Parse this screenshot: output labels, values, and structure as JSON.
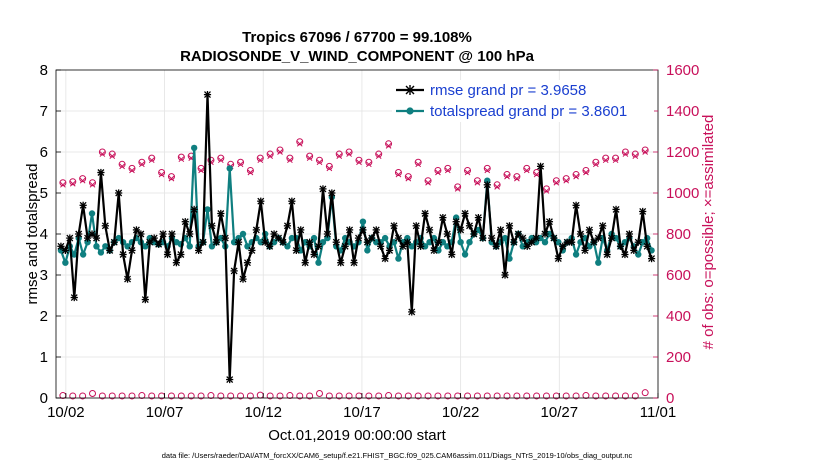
{
  "colors": {
    "rmse": "#000000",
    "spread": "#0f7f80",
    "obs": "#c8105a",
    "legend_text": "#1a3fd0"
  },
  "chart_data": {
    "type": "line",
    "title": "Tropics 67096 / 67700 = 99.108%",
    "subtitle": "RADIOSONDE_V_WIND_COMPONENT @ 100 hPa",
    "xlabel": "Oct.01,2019 00:00:00 start",
    "ylabel": "rmse and totalspread",
    "ylabel_right": "# of obs: o=possible; ×=assimilated",
    "xlim": [
      0.5,
      31.0
    ],
    "ylim": [
      0,
      8
    ],
    "ylim_right": [
      0,
      1600
    ],
    "x_ticks": [
      1,
      6,
      11,
      16,
      21,
      26,
      31
    ],
    "x_tick_labels": [
      "10/02",
      "10/07",
      "10/12",
      "10/17",
      "10/22",
      "10/27",
      "11/01"
    ],
    "y_ticks": [
      0,
      1,
      2,
      3,
      4,
      5,
      6,
      7,
      8
    ],
    "y_ticks_right": [
      0,
      200,
      400,
      600,
      800,
      1000,
      1200,
      1400,
      1600
    ],
    "grid": true,
    "legend_position": "top-right",
    "x_step": 0.25,
    "series": [
      {
        "name": "rmse grand pr = 3.9658",
        "axis": "left",
        "values": [
          3.7,
          3.6,
          3.9,
          2.45,
          4.0,
          4.7,
          3.9,
          4.0,
          3.9,
          5.5,
          4.2,
          3.6,
          3.8,
          5.0,
          3.5,
          2.9,
          3.6,
          4.1,
          4.0,
          2.4,
          3.8,
          3.9,
          3.75,
          4.0,
          3.5,
          4.0,
          3.3,
          3.5,
          4.3,
          4.0,
          4.6,
          3.6,
          3.8,
          7.4,
          4.2,
          3.8,
          4.5,
          3.9,
          0.45,
          3.1,
          3.8,
          2.9,
          3.3,
          3.6,
          4.1,
          4.8,
          3.8,
          3.7,
          4.0,
          3.9,
          3.8,
          4.2,
          4.8,
          3.6,
          4.1,
          3.3,
          3.8,
          3.5,
          3.7,
          5.1,
          4.0,
          5.0,
          3.8,
          3.3,
          3.7,
          4.1,
          3.3,
          3.9,
          4.1,
          3.8,
          3.9,
          4.1,
          3.7,
          3.4,
          3.6,
          4.2,
          3.9,
          3.7,
          3.8,
          2.1,
          4.2,
          3.7,
          4.5,
          4.1,
          3.6,
          3.8,
          4.4,
          4.0,
          3.5,
          4.3,
          4.1,
          4.5,
          4.2,
          4.0,
          4.4,
          3.9,
          5.2,
          3.9,
          3.7,
          4.1,
          3.0,
          4.2,
          3.8,
          4.0,
          3.9,
          3.7,
          3.8,
          3.9,
          5.65,
          4.0,
          4.3,
          3.9,
          3.4,
          3.7,
          3.8,
          3.8,
          4.7,
          4.0,
          3.6,
          4.1,
          3.8,
          3.9,
          4.2,
          3.5,
          3.9,
          4.6,
          3.7,
          3.5,
          4.0,
          3.6,
          3.8,
          4.55,
          3.7,
          3.4
        ]
      },
      {
        "name": "totalspread grand pr = 3.8601",
        "axis": "left",
        "values": [
          3.6,
          3.3,
          3.7,
          3.5,
          3.9,
          3.5,
          3.8,
          4.5,
          3.7,
          3.55,
          3.7,
          3.6,
          3.8,
          3.9,
          3.8,
          3.7,
          3.8,
          3.9,
          3.8,
          3.7,
          3.9,
          3.8,
          3.75,
          3.8,
          3.7,
          3.9,
          3.8,
          3.75,
          3.9,
          3.7,
          6.1,
          3.7,
          3.8,
          4.6,
          3.7,
          3.8,
          3.9,
          3.7,
          5.6,
          3.8,
          3.9,
          4.0,
          3.7,
          3.8,
          3.9,
          3.8,
          4.0,
          3.7,
          3.8,
          3.9,
          3.8,
          3.7,
          3.9,
          3.9,
          3.6,
          3.8,
          3.7,
          3.9,
          3.3,
          3.8,
          3.9,
          4.9,
          3.7,
          3.6,
          3.9,
          3.8,
          3.7,
          3.8,
          4.3,
          3.6,
          3.9,
          3.8,
          3.8,
          3.9,
          3.7,
          3.8,
          3.4,
          3.8,
          3.9,
          3.7,
          3.8,
          3.9,
          3.7,
          3.8,
          3.9,
          3.6,
          3.8,
          3.7,
          3.8,
          4.4,
          3.8,
          3.5,
          3.8,
          4.0,
          4.1,
          3.9,
          5.3,
          3.8,
          3.7,
          3.8,
          3.9,
          3.4,
          3.8,
          4.0,
          3.7,
          3.8,
          3.9,
          3.8,
          3.9,
          3.8,
          4.0,
          3.9,
          3.8,
          3.6,
          3.8,
          3.9,
          3.5,
          3.8,
          3.9,
          3.7,
          3.8,
          3.3,
          3.9,
          3.6,
          4.0,
          3.9,
          3.7,
          3.8,
          3.9,
          3.7,
          3.5,
          3.8,
          3.9,
          3.6
        ]
      },
      {
        "name": "obs possible (o)",
        "axis": "right",
        "step": 1.0,
        "values": [
          1050,
          1055,
          1070,
          1050,
          1200,
          1190,
          1140,
          1120,
          1150,
          1170,
          1100,
          1080,
          1175,
          1180,
          1120,
          1160,
          1170,
          1140,
          1150,
          1110,
          1170,
          1190,
          1210,
          1170,
          1250,
          1180,
          1160,
          1130,
          1190,
          1200,
          1160,
          1150,
          1190,
          1240,
          1100,
          1080,
          1150,
          1060,
          1110,
          1120,
          1030,
          1110,
          1060,
          1120,
          1040,
          1090,
          1080,
          1120,
          1100,
          1020,
          1060,
          1070,
          1090,
          1110,
          1150,
          1170,
          1170,
          1200,
          1190,
          1210
        ]
      },
      {
        "name": "obs assimilated (×)",
        "axis": "right",
        "step": 1.0,
        "values": [
          1040,
          1045,
          1060,
          1040,
          1190,
          1180,
          1130,
          1110,
          1140,
          1160,
          1090,
          1070,
          1165,
          1170,
          1110,
          1150,
          1160,
          1130,
          1140,
          1100,
          1160,
          1180,
          1200,
          1160,
          1240,
          1170,
          1150,
          1120,
          1180,
          1190,
          1150,
          1140,
          1180,
          1230,
          1090,
          1070,
          1140,
          1050,
          1100,
          1110,
          1020,
          1100,
          1050,
          1110,
          1030,
          1080,
          1070,
          1110,
          1090,
          1010,
          1050,
          1060,
          1080,
          1100,
          1140,
          1160,
          1160,
          1190,
          1180,
          1200
        ]
      },
      {
        "name": "obs possible bottom (o)",
        "axis": "right",
        "step": 1.0,
        "values": [
          12,
          10,
          10,
          22,
          10,
          10,
          10,
          10,
          12,
          10,
          10,
          10,
          10,
          10,
          10,
          12,
          10,
          10,
          10,
          10,
          14,
          10,
          10,
          12,
          10,
          10,
          22,
          10,
          10,
          10,
          10,
          10,
          10,
          12,
          10,
          10,
          10,
          10,
          10,
          10,
          10,
          10,
          10,
          10,
          10,
          10,
          10,
          10,
          10,
          10,
          10,
          10,
          10,
          12,
          10,
          10,
          10,
          10,
          10,
          26
        ]
      }
    ],
    "legend": [
      {
        "label": "rmse grand pr = 3.9658",
        "series": "rmse"
      },
      {
        "label": "totalspread grand pr = 3.8601",
        "series": "spread"
      }
    ]
  },
  "footer": "data file: /Users/raeder/DAI/ATM_forcXX/CAM6_setup/f.e21.FHIST_BGC.f09_025.CAM6assim.011/Diags_NTrS_2019-10/obs_diag_output.nc"
}
